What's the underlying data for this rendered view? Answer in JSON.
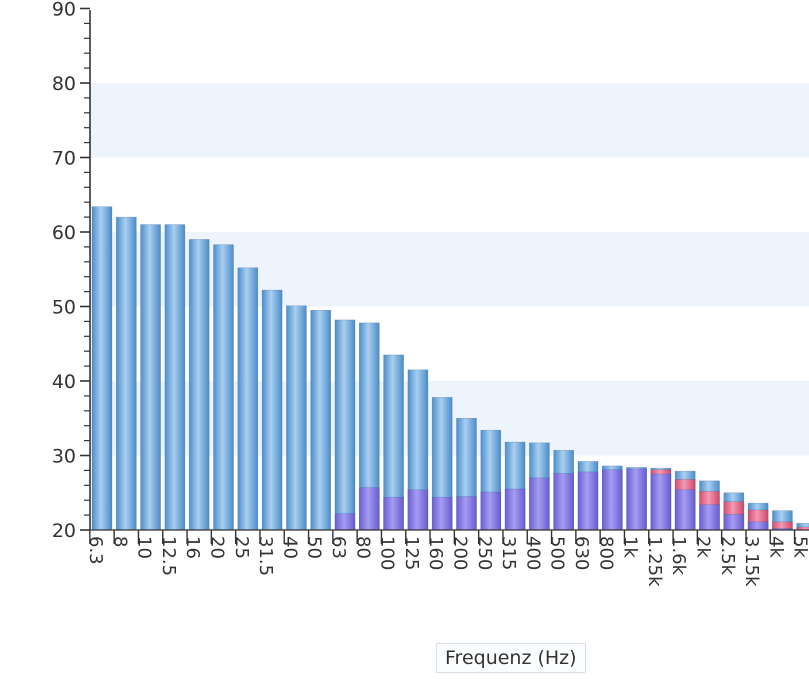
{
  "chart_data": {
    "type": "bar",
    "xlabel": "Frequenz (Hz)",
    "ylabel": "",
    "ylim": [
      20,
      90
    ],
    "yticks": [
      20,
      30,
      40,
      50,
      60,
      70,
      80,
      90
    ],
    "ytick_labels": [
      "20",
      "30",
      "40",
      "50",
      "60",
      "70",
      "80",
      "90"
    ],
    "grid": "alternating horizontal bands",
    "categories": [
      "6.3",
      "8",
      "10",
      "12.5",
      "16",
      "20",
      "25",
      "31.5",
      "40",
      "50",
      "63",
      "80",
      "100",
      "125",
      "160",
      "200",
      "250",
      "315",
      "400",
      "500",
      "630",
      "800",
      "1k",
      "1.25k",
      "1.6k",
      "2k",
      "2.5k",
      "3.15k",
      "4k",
      "5k"
    ],
    "series": [
      {
        "values": [
          63.4,
          62.0,
          61.0,
          61.0,
          59.0,
          58.3,
          55.2,
          52.2,
          50.1,
          49.5,
          48.2,
          47.8,
          43.5,
          41.5,
          37.8,
          35.0,
          33.4,
          31.8,
          31.7,
          30.7,
          29.2,
          28.6,
          28.4,
          28.3,
          27.9,
          26.6,
          25.0,
          23.6,
          22.6,
          20.9
        ],
        "color": "#5e9fd4"
      },
      {
        "values": [
          null,
          null,
          null,
          null,
          null,
          null,
          null,
          null,
          null,
          null,
          22.2,
          25.7,
          24.4,
          25.4,
          24.4,
          24.5,
          25.1,
          25.5,
          27.0,
          27.6,
          27.8,
          28.1,
          28.2,
          27.5,
          25.4,
          23.4,
          22.1,
          21.1,
          20.2,
          null
        ],
        "color": "#7b6fdc"
      },
      {
        "values": [
          null,
          null,
          null,
          null,
          null,
          null,
          null,
          null,
          null,
          null,
          null,
          null,
          null,
          null,
          null,
          null,
          null,
          null,
          null,
          null,
          null,
          null,
          null,
          28.1,
          26.8,
          25.2,
          23.8,
          22.7,
          21.1,
          20.4
        ],
        "color": "#e0587a"
      }
    ]
  }
}
